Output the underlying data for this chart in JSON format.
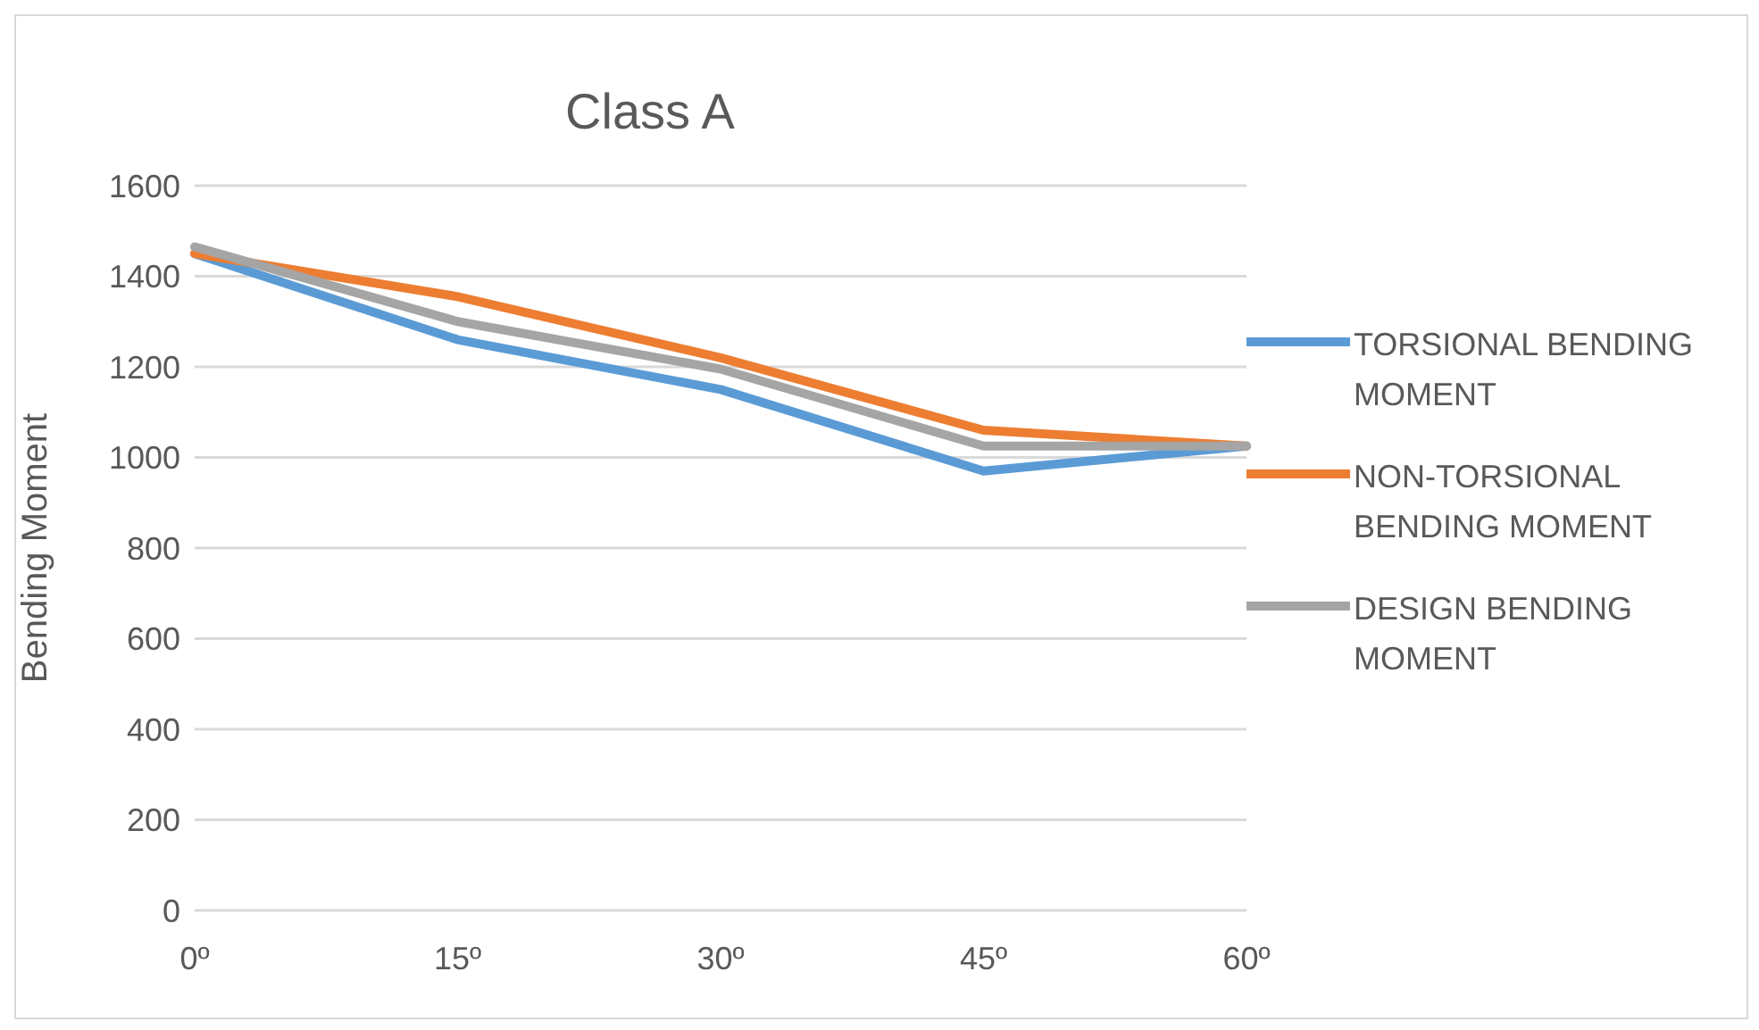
{
  "chart_data": {
    "type": "line",
    "title": "Class A",
    "ylabel": "Bending Moment",
    "categories": [
      "0º",
      "15º",
      "30º",
      "45º",
      "60º"
    ],
    "series": [
      {
        "name": "TORSIONAL BENDING MOMENT",
        "color": "#5b9bd5",
        "values": [
          1450,
          1260,
          1150,
          970,
          1025
        ]
      },
      {
        "name": "NON-TORSIONAL BENDING MOMENT",
        "color": "#ed7d31",
        "values": [
          1450,
          1355,
          1220,
          1060,
          1025
        ]
      },
      {
        "name": "DESIGN BENDING MOMENT",
        "color": "#a5a5a5",
        "values": [
          1465,
          1300,
          1195,
          1025,
          1025
        ]
      }
    ],
    "ylim": [
      0,
      1600
    ],
    "yticks": [
      0,
      200,
      400,
      600,
      800,
      1000,
      1200,
      1400,
      1600
    ],
    "grid": "y",
    "legend": "right",
    "marker": "none",
    "line_style": "solid"
  }
}
